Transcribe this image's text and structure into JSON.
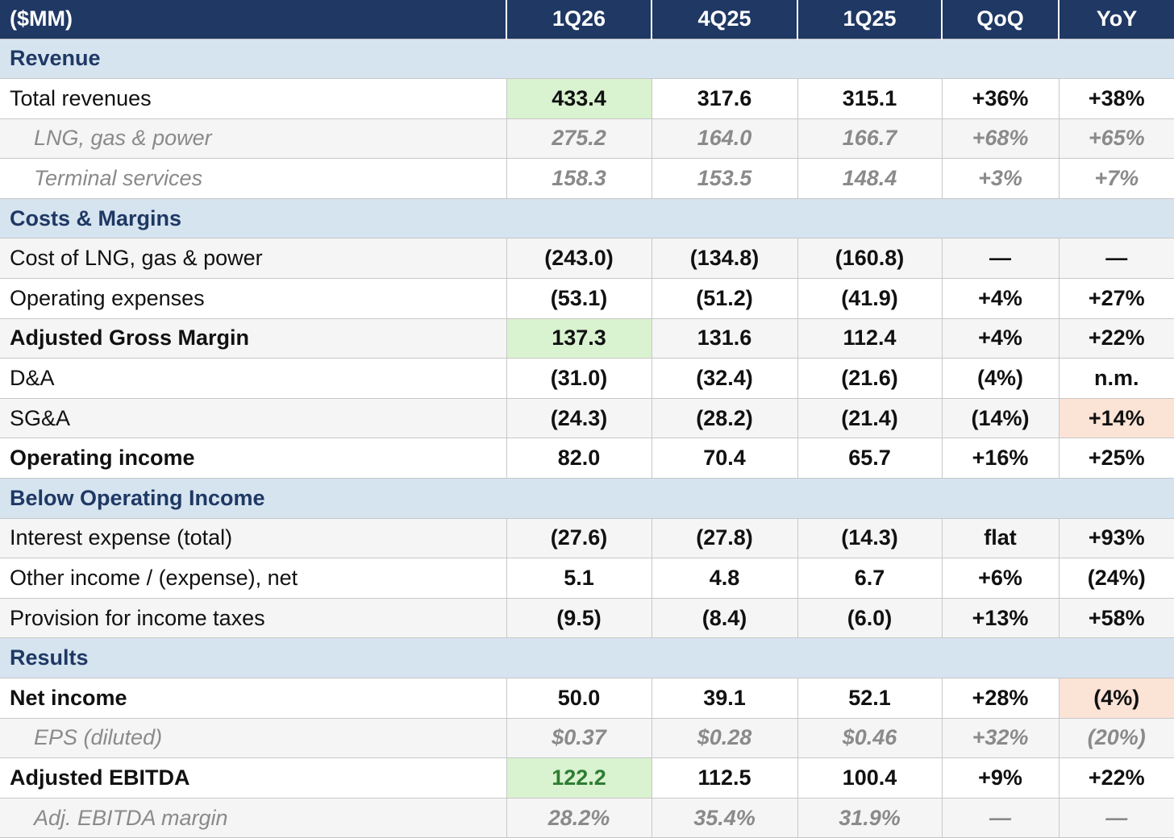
{
  "header": [
    "($MM)",
    "1Q26",
    "4Q25",
    "1Q25",
    "QoQ",
    "YoY"
  ],
  "sections": {
    "revenue": "Revenue",
    "costs": "Costs & Margins",
    "below": "Below Operating Income",
    "results": "Results"
  },
  "rows": {
    "total_revenues": [
      "Total revenues",
      "433.4",
      "317.6",
      "315.1",
      "+36%",
      "+38%"
    ],
    "lng_gas_power": [
      "LNG, gas & power",
      "275.2",
      "164.0",
      "166.7",
      "+68%",
      "+65%"
    ],
    "terminal_services": [
      "Terminal services",
      "158.3",
      "153.5",
      "148.4",
      "+3%",
      "+7%"
    ],
    "cost_lng": [
      "Cost of LNG, gas & power",
      "(243.0)",
      "(134.8)",
      "(160.8)",
      "—",
      "—"
    ],
    "opex": [
      "Operating expenses",
      "(53.1)",
      "(51.2)",
      "(41.9)",
      "+4%",
      "+27%"
    ],
    "adj_gross_margin": [
      "Adjusted Gross Margin",
      "137.3",
      "131.6",
      "112.4",
      "+4%",
      "+22%"
    ],
    "da": [
      "D&A",
      "(31.0)",
      "(32.4)",
      "(21.6)",
      "(4%)",
      "n.m."
    ],
    "sga": [
      "SG&A",
      "(24.3)",
      "(28.2)",
      "(21.4)",
      "(14%)",
      "+14%"
    ],
    "operating_income": [
      "Operating income",
      "82.0",
      "70.4",
      "65.7",
      "+16%",
      "+25%"
    ],
    "interest_expense": [
      "Interest expense (total)",
      "(27.6)",
      "(27.8)",
      "(14.3)",
      "flat",
      "+93%"
    ],
    "other_income": [
      "Other income / (expense), net",
      "5.1",
      "4.8",
      "6.7",
      "+6%",
      "(24%)"
    ],
    "income_taxes": [
      "Provision for income taxes",
      "(9.5)",
      "(8.4)",
      "(6.0)",
      "+13%",
      "+58%"
    ],
    "net_income": [
      "Net income",
      "50.0",
      "39.1",
      "52.1",
      "+28%",
      "(4%)"
    ],
    "eps": [
      "EPS (diluted)",
      "$0.37",
      "$0.28",
      "$0.46",
      "+32%",
      "(20%)"
    ],
    "adj_ebitda": [
      "Adjusted EBITDA",
      "122.2",
      "112.5",
      "100.4",
      "+9%",
      "+22%"
    ],
    "adj_ebitda_margin": [
      "Adj. EBITDA margin",
      "28.2%",
      "35.4%",
      "31.9%",
      "—",
      "—"
    ]
  },
  "colors": {
    "header_bg": "#1f3864",
    "section_bg": "#d6e4f0",
    "highlight_green": "#d9f2d0",
    "highlight_green_text": "#2e7d32",
    "highlight_peach": "#fbe3d6"
  }
}
